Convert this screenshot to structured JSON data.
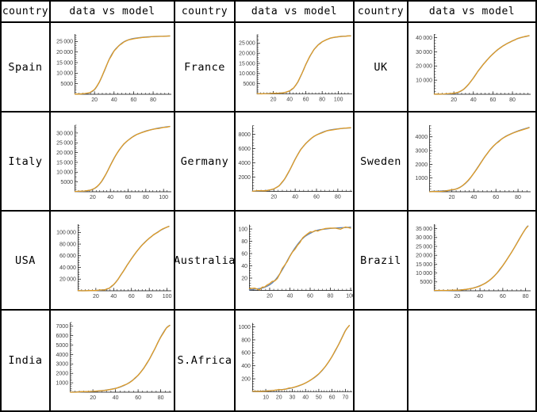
{
  "header": {
    "country_label": "country",
    "plot_label": "data vs model"
  },
  "colors": {
    "model": "#5e81b5",
    "data": "#e19c24",
    "axis": "#000000",
    "tick_label": "#404040",
    "border": "#000000",
    "background": "#ffffff"
  },
  "series_legend": [
    {
      "name": "data",
      "color": "#e19c24"
    },
    {
      "name": "model",
      "color": "#5e81b5"
    }
  ],
  "chart_data": [
    {
      "type": "line",
      "country": "Spain",
      "x_ticks": [
        20,
        40,
        60,
        80
      ],
      "y_ticks": [
        5000,
        10000,
        15000,
        20000,
        25000
      ],
      "x_max": 97,
      "y_max": 28500,
      "noise": 180,
      "points": [
        [
          0,
          100
        ],
        [
          10,
          300
        ],
        [
          15,
          700
        ],
        [
          20,
          2200
        ],
        [
          25,
          5800
        ],
        [
          30,
          11000
        ],
        [
          35,
          16500
        ],
        [
          40,
          20500
        ],
        [
          45,
          23000
        ],
        [
          50,
          24800
        ],
        [
          55,
          25800
        ],
        [
          60,
          26400
        ],
        [
          70,
          27000
        ],
        [
          80,
          27300
        ],
        [
          90,
          27500
        ],
        [
          97,
          27600
        ]
      ]
    },
    {
      "type": "line",
      "country": "France",
      "x_ticks": [
        20,
        40,
        60,
        80,
        100
      ],
      "y_ticks": [
        5000,
        10000,
        15000,
        20000,
        25000
      ],
      "x_max": 115,
      "y_max": 29200,
      "noise": 120,
      "points": [
        [
          0,
          50
        ],
        [
          10,
          100
        ],
        [
          20,
          250
        ],
        [
          30,
          500
        ],
        [
          35,
          800
        ],
        [
          40,
          1500
        ],
        [
          45,
          3000
        ],
        [
          50,
          5800
        ],
        [
          55,
          10000
        ],
        [
          60,
          14500
        ],
        [
          65,
          18500
        ],
        [
          70,
          21800
        ],
        [
          75,
          24000
        ],
        [
          80,
          25600
        ],
        [
          90,
          27400
        ],
        [
          100,
          28100
        ],
        [
          108,
          28400
        ],
        [
          115,
          28600
        ]
      ]
    },
    {
      "type": "line",
      "country": "UK",
      "x_ticks": [
        20,
        40,
        60,
        80
      ],
      "y_ticks": [
        10000,
        20000,
        30000,
        40000
      ],
      "x_max": 97,
      "y_max": 42500,
      "noise": 150,
      "points": [
        [
          0,
          50
        ],
        [
          10,
          150
        ],
        [
          20,
          600
        ],
        [
          25,
          1500
        ],
        [
          30,
          3500
        ],
        [
          35,
          7000
        ],
        [
          40,
          11500
        ],
        [
          45,
          16500
        ],
        [
          50,
          21000
        ],
        [
          55,
          25000
        ],
        [
          60,
          28500
        ],
        [
          65,
          31500
        ],
        [
          70,
          34000
        ],
        [
          75,
          36000
        ],
        [
          80,
          37700
        ],
        [
          85,
          39200
        ],
        [
          90,
          40300
        ],
        [
          97,
          41300
        ]
      ]
    },
    {
      "type": "line",
      "country": "Italy",
      "x_ticks": [
        20,
        40,
        60,
        80,
        100
      ],
      "y_ticks": [
        5000,
        10000,
        15000,
        20000,
        25000,
        30000
      ],
      "x_max": 107,
      "y_max": 34000,
      "noise": 150,
      "points": [
        [
          0,
          100
        ],
        [
          10,
          300
        ],
        [
          15,
          600
        ],
        [
          20,
          1200
        ],
        [
          25,
          2600
        ],
        [
          30,
          5200
        ],
        [
          35,
          9000
        ],
        [
          40,
          13500
        ],
        [
          45,
          17800
        ],
        [
          50,
          21300
        ],
        [
          55,
          24200
        ],
        [
          60,
          26300
        ],
        [
          65,
          28000
        ],
        [
          70,
          29300
        ],
        [
          80,
          31000
        ],
        [
          90,
          32100
        ],
        [
          100,
          32900
        ],
        [
          107,
          33300
        ]
      ]
    },
    {
      "type": "line",
      "country": "Germany",
      "x_ticks": [
        20,
        40,
        60,
        80
      ],
      "y_ticks": [
        2000,
        4000,
        6000,
        8000
      ],
      "x_max": 92,
      "y_max": 9200,
      "noise": 45,
      "points": [
        [
          0,
          30
        ],
        [
          10,
          80
        ],
        [
          15,
          150
        ],
        [
          20,
          350
        ],
        [
          25,
          800
        ],
        [
          30,
          1700
        ],
        [
          35,
          3000
        ],
        [
          40,
          4500
        ],
        [
          45,
          5800
        ],
        [
          50,
          6700
        ],
        [
          55,
          7400
        ],
        [
          60,
          7900
        ],
        [
          70,
          8500
        ],
        [
          80,
          8750
        ],
        [
          92,
          8900
        ]
      ]
    },
    {
      "type": "line",
      "country": "Sweden",
      "x_ticks": [
        20,
        40,
        60,
        80
      ],
      "y_ticks": [
        1000,
        2000,
        3000,
        4000
      ],
      "x_max": 90,
      "y_max": 4850,
      "noise": 30,
      "points": [
        [
          0,
          20
        ],
        [
          10,
          50
        ],
        [
          20,
          120
        ],
        [
          25,
          230
        ],
        [
          30,
          450
        ],
        [
          35,
          820
        ],
        [
          40,
          1350
        ],
        [
          45,
          1950
        ],
        [
          50,
          2550
        ],
        [
          55,
          3080
        ],
        [
          60,
          3500
        ],
        [
          65,
          3830
        ],
        [
          70,
          4080
        ],
        [
          80,
          4430
        ],
        [
          90,
          4680
        ]
      ]
    },
    {
      "type": "line",
      "country": "USA",
      "x_ticks": [
        20,
        40,
        60,
        80,
        100
      ],
      "y_ticks": [
        20000,
        40000,
        60000,
        80000,
        100000
      ],
      "x_max": 103,
      "y_max": 114000,
      "noise": 500,
      "points": [
        [
          0,
          100
        ],
        [
          10,
          200
        ],
        [
          20,
          500
        ],
        [
          30,
          1800
        ],
        [
          35,
          4500
        ],
        [
          40,
          10500
        ],
        [
          45,
          20000
        ],
        [
          50,
          31500
        ],
        [
          55,
          43500
        ],
        [
          60,
          55000
        ],
        [
          65,
          65500
        ],
        [
          70,
          75000
        ],
        [
          75,
          83000
        ],
        [
          80,
          90000
        ],
        [
          85,
          96000
        ],
        [
          90,
          101000
        ],
        [
          95,
          105500
        ],
        [
          102,
          110500
        ]
      ]
    },
    {
      "type": "line",
      "country": "Australia",
      "x_ticks": [
        20,
        40,
        60,
        80,
        100
      ],
      "y_ticks": [
        20,
        40,
        60,
        80,
        100
      ],
      "x_max": 100,
      "y_max": 107,
      "noise": 2.5,
      "points": [
        [
          0,
          1
        ],
        [
          10,
          3
        ],
        [
          15,
          5
        ],
        [
          20,
          9
        ],
        [
          25,
          16
        ],
        [
          30,
          27
        ],
        [
          35,
          41
        ],
        [
          40,
          56
        ],
        [
          45,
          69
        ],
        [
          50,
          80
        ],
        [
          55,
          88
        ],
        [
          60,
          93
        ],
        [
          65,
          97
        ],
        [
          70,
          99
        ],
        [
          80,
          101
        ],
        [
          90,
          102
        ],
        [
          100,
          103
        ]
      ]
    },
    {
      "type": "line",
      "country": "Brazil",
      "x_ticks": [
        20,
        40,
        60,
        80
      ],
      "y_ticks": [
        5000,
        10000,
        15000,
        20000,
        25000,
        30000,
        35000
      ],
      "x_max": 83,
      "y_max": 37500,
      "noise": 150,
      "points": [
        [
          0,
          50
        ],
        [
          10,
          120
        ],
        [
          20,
          350
        ],
        [
          25,
          600
        ],
        [
          30,
          1000
        ],
        [
          35,
          1700
        ],
        [
          40,
          2800
        ],
        [
          45,
          4400
        ],
        [
          50,
          6800
        ],
        [
          55,
          10000
        ],
        [
          60,
          14200
        ],
        [
          65,
          19000
        ],
        [
          70,
          24200
        ],
        [
          75,
          29800
        ],
        [
          80,
          35000
        ],
        [
          82,
          36500
        ]
      ]
    },
    {
      "type": "line",
      "country": "India",
      "x_ticks": [
        20,
        40,
        60,
        80
      ],
      "y_ticks": [
        1000,
        2000,
        3000,
        4000,
        5000,
        6000,
        7000
      ],
      "x_max": 88,
      "y_max": 7400,
      "noise": 35,
      "points": [
        [
          0,
          20
        ],
        [
          10,
          40
        ],
        [
          20,
          90
        ],
        [
          30,
          190
        ],
        [
          40,
          400
        ],
        [
          45,
          590
        ],
        [
          50,
          860
        ],
        [
          55,
          1250
        ],
        [
          60,
          1800
        ],
        [
          65,
          2550
        ],
        [
          70,
          3500
        ],
        [
          75,
          4650
        ],
        [
          80,
          5850
        ],
        [
          85,
          6800
        ],
        [
          88,
          7100
        ]
      ]
    },
    {
      "type": "line",
      "country": "S.Africa",
      "x_ticks": [
        10,
        20,
        30,
        40,
        50,
        60,
        70
      ],
      "y_ticks": [
        200,
        400,
        600,
        800,
        1000
      ],
      "x_max": 74,
      "y_max": 1060,
      "noise": 6,
      "points": [
        [
          0,
          5
        ],
        [
          10,
          12
        ],
        [
          20,
          28
        ],
        [
          25,
          42
        ],
        [
          30,
          62
        ],
        [
          35,
          92
        ],
        [
          40,
          135
        ],
        [
          45,
          195
        ],
        [
          50,
          275
        ],
        [
          55,
          390
        ],
        [
          60,
          545
        ],
        [
          65,
          730
        ],
        [
          70,
          940
        ],
        [
          73,
          1020
        ]
      ]
    }
  ]
}
